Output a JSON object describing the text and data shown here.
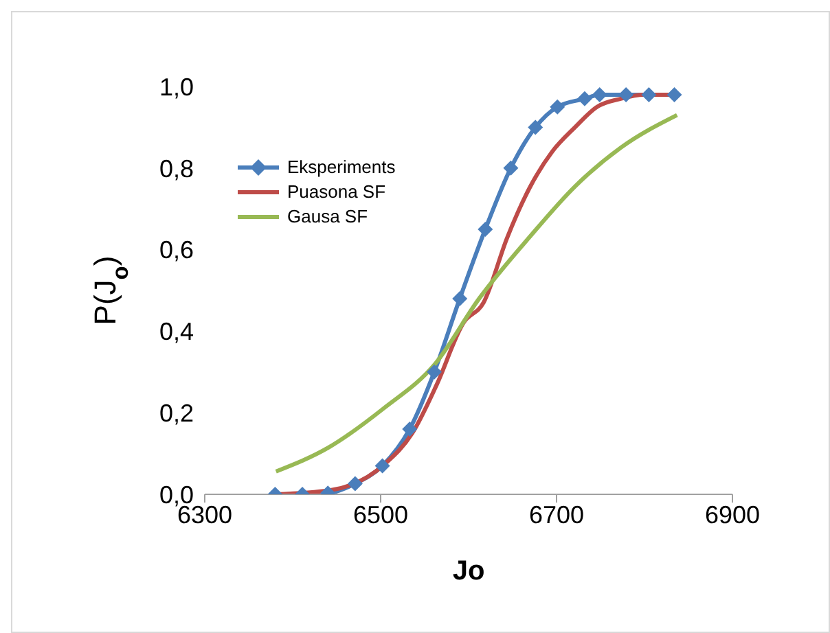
{
  "chart_data": {
    "type": "line",
    "xlabel": "Jo",
    "ylabel": "P(J$_{o}$)",
    "xlim": [
      6300,
      6900
    ],
    "xticks": [
      6300,
      6500,
      6700,
      6900
    ],
    "ylim": [
      0,
      1
    ],
    "yticks": [
      {
        "value": 0,
        "label": "0,0"
      },
      {
        "value": 0.2,
        "label": "0,2"
      },
      {
        "value": 0.4,
        "label": "0,4"
      },
      {
        "value": 0.6,
        "label": "0,6"
      },
      {
        "value": 0.8,
        "label": "0,8"
      },
      {
        "value": 1,
        "label": "1,0"
      }
    ],
    "grid": false,
    "legend": "top left",
    "line_style": "solid",
    "series": [
      {
        "name": "Eksperiments",
        "color": "#4a7ebb",
        "marker": "diamond",
        "x": [
          6380,
          6411,
          6440,
          6471,
          6502,
          6533,
          6561,
          6590,
          6619,
          6648,
          6676,
          6701,
          6732,
          6749,
          6779,
          6805,
          6834
        ],
        "values": [
          0,
          0,
          0.003,
          0.026,
          0.07,
          0.16,
          0.3,
          0.48,
          0.65,
          0.8,
          0.9,
          0.95,
          0.97,
          0.98,
          0.98,
          0.98,
          0.98
        ]
      },
      {
        "name": "Puasona SF",
        "color": "#be4b48",
        "marker": "none",
        "x": [
          6381,
          6443,
          6505,
          6536,
          6564,
          6594,
          6617,
          6644,
          6669,
          6695,
          6721,
          6746,
          6773,
          6799,
          6837
        ],
        "values": [
          0,
          0.01,
          0.075,
          0.15,
          0.27,
          0.42,
          0.47,
          0.63,
          0.75,
          0.84,
          0.9,
          0.95,
          0.97,
          0.98,
          0.98
        ]
      },
      {
        "name": "Gausa SF",
        "color": "#98b954",
        "marker": "none",
        "x": [
          6381,
          6441,
          6503,
          6562,
          6612,
          6669,
          6721,
          6773,
          6837
        ],
        "values": [
          0.056,
          0.115,
          0.21,
          0.32,
          0.48,
          0.63,
          0.755,
          0.85,
          0.93
        ]
      }
    ]
  }
}
